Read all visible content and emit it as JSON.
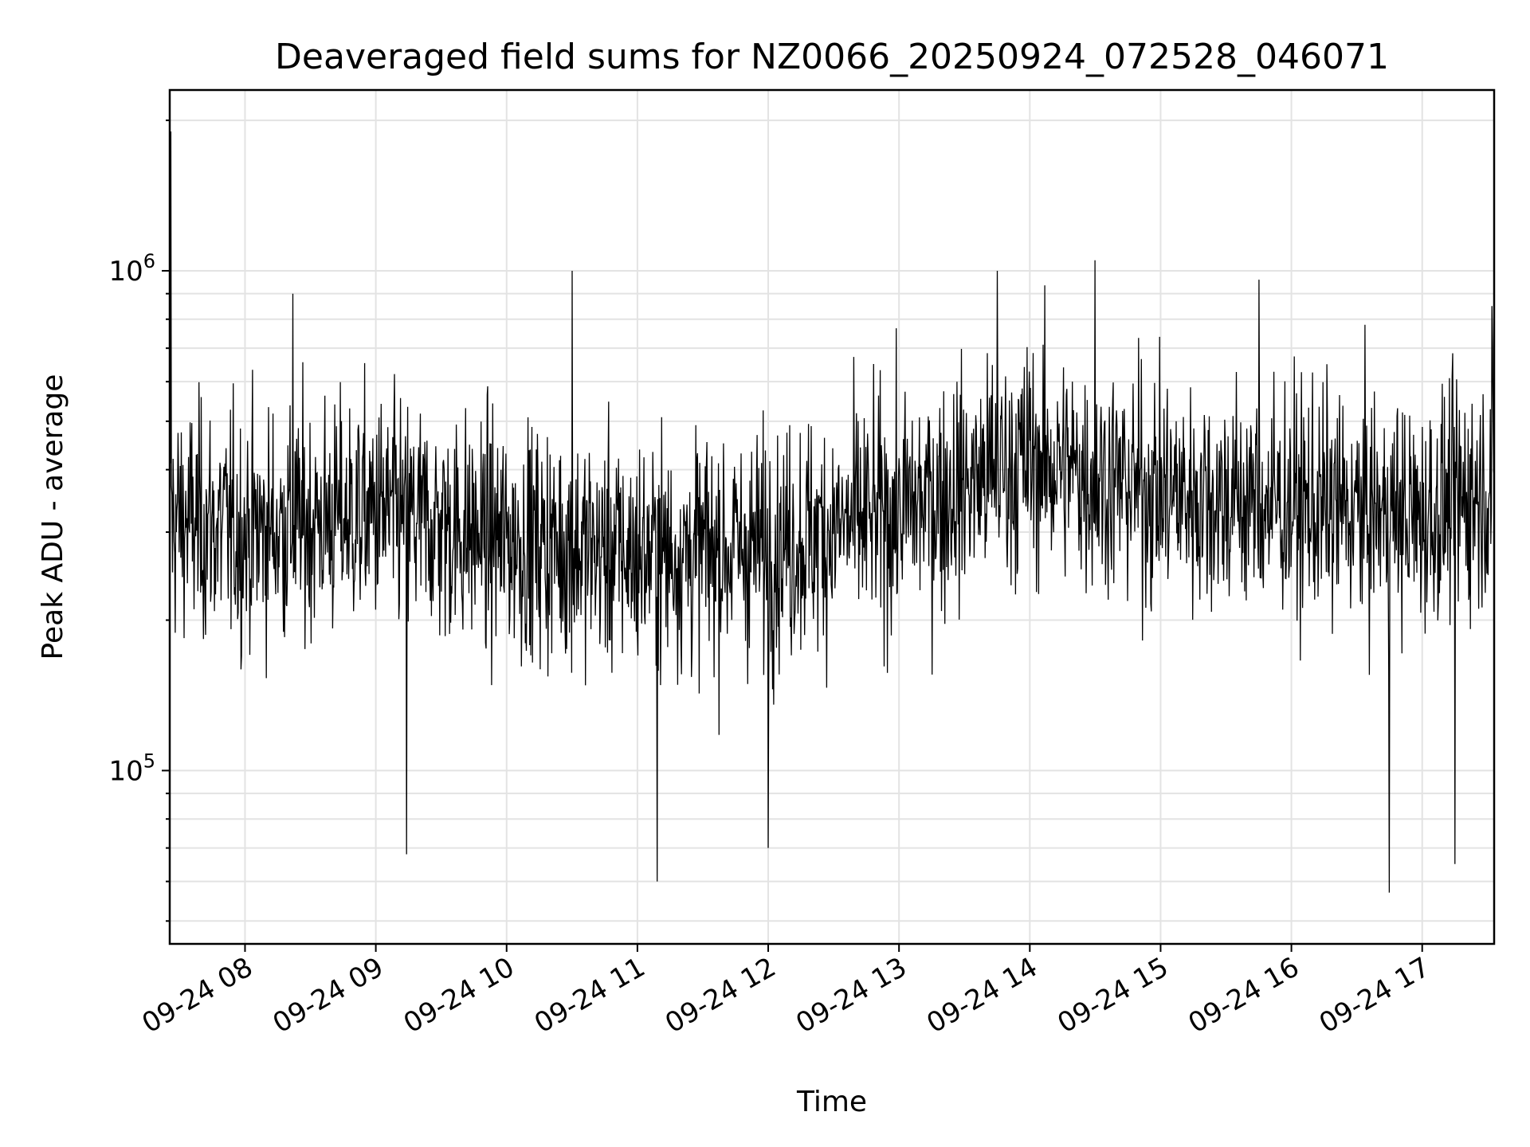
{
  "chart_data": {
    "type": "line",
    "title": "Deaveraged field sums for NZ0066_20250924_072528_046071",
    "xlabel": "Time",
    "ylabel": "Peak ADU - average",
    "yscale": "log",
    "ylim": [
      45000,
      2300000
    ],
    "xlim": [
      "2025-09-24 07:25:28",
      "2025-09-24 17:33:00"
    ],
    "grid": true,
    "line_color": "#000000",
    "x_ticks": [
      {
        "t": "2025-09-24 08:00",
        "label": "09-24 08"
      },
      {
        "t": "2025-09-24 09:00",
        "label": "09-24 09"
      },
      {
        "t": "2025-09-24 10:00",
        "label": "09-24 10"
      },
      {
        "t": "2025-09-24 11:00",
        "label": "09-24 11"
      },
      {
        "t": "2025-09-24 12:00",
        "label": "09-24 12"
      },
      {
        "t": "2025-09-24 13:00",
        "label": "09-24 13"
      },
      {
        "t": "2025-09-24 14:00",
        "label": "09-24 14"
      },
      {
        "t": "2025-09-24 15:00",
        "label": "09-24 15"
      },
      {
        "t": "2025-09-24 16:00",
        "label": "09-24 16"
      },
      {
        "t": "2025-09-24 17:00",
        "label": "09-24 17"
      }
    ],
    "y_ticks": [
      {
        "value": 100000,
        "base": "10",
        "exp": "5"
      },
      {
        "value": 1000000,
        "base": "10",
        "exp": "6"
      }
    ],
    "baseline": {
      "x": [
        "2025-09-24 07:25",
        "2025-09-24 08:00",
        "2025-09-24 09:00",
        "2025-09-24 10:00",
        "2025-09-24 11:00",
        "2025-09-24 12:00",
        "2025-09-24 13:00",
        "2025-09-24 14:00",
        "2025-09-24 15:00",
        "2025-09-24 16:00",
        "2025-09-24 17:00",
        "2025-09-24 17:33"
      ],
      "median": [
        320000,
        300000,
        330000,
        290000,
        270000,
        280000,
        330000,
        420000,
        360000,
        340000,
        320000,
        380000
      ]
    },
    "notable_points": [
      {
        "x": "2025-09-24 07:26",
        "y": 1900000
      },
      {
        "x": "2025-09-24 08:22",
        "y": 900000
      },
      {
        "x": "2025-09-24 10:30",
        "y": 1000000
      },
      {
        "x": "2025-09-24 09:14",
        "y": 68000
      },
      {
        "x": "2025-09-24 11:09",
        "y": 60000
      },
      {
        "x": "2025-09-24 12:00",
        "y": 70000
      },
      {
        "x": "2025-09-24 13:45",
        "y": 1000000
      },
      {
        "x": "2025-09-24 14:30",
        "y": 1050000
      },
      {
        "x": "2025-09-24 15:45",
        "y": 960000
      },
      {
        "x": "2025-09-24 16:45",
        "y": 57000
      },
      {
        "x": "2025-09-24 17:15",
        "y": 65000
      },
      {
        "x": "2025-09-24 17:32",
        "y": 850000
      }
    ]
  }
}
